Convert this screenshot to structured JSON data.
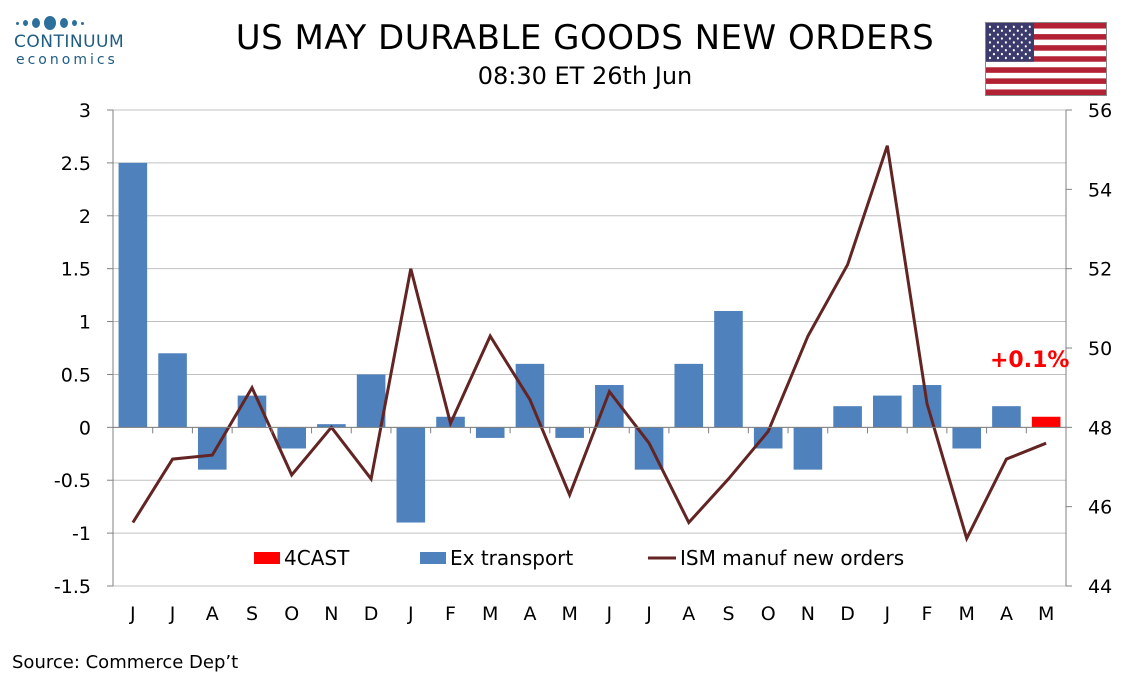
{
  "logo": {
    "word": "CONTINUUM",
    "sub": "economics"
  },
  "header": {
    "title": "US MAY DURABLE GOODS NEW ORDERS",
    "subtitle": "08:30 ET 26th Jun"
  },
  "source": "Source: Commerce Dep’t",
  "colors": {
    "ex_transport": "#4f81bd",
    "forecast": "#ff0000",
    "ism": "#632523",
    "grid": "#c0c0c0"
  },
  "chart_data": {
    "type": "bar",
    "categories": [
      "J",
      "J",
      "A",
      "S",
      "O",
      "N",
      "D",
      "J",
      "F",
      "M",
      "A",
      "M",
      "J",
      "J",
      "A",
      "S",
      "O",
      "N",
      "D",
      "J",
      "F",
      "M",
      "A",
      "M"
    ],
    "series": [
      {
        "name": "Ex transport",
        "kind": "bar",
        "axis": "left",
        "values": [
          2.5,
          0.7,
          -0.4,
          0.3,
          -0.2,
          0.03,
          0.5,
          -0.9,
          0.1,
          -0.1,
          0.6,
          -0.1,
          0.4,
          -0.4,
          0.6,
          1.1,
          -0.2,
          -0.4,
          0.2,
          0.3,
          0.4,
          -0.2,
          0.2,
          null
        ]
      },
      {
        "name": "4CAST",
        "kind": "bar",
        "axis": "left",
        "values": [
          null,
          null,
          null,
          null,
          null,
          null,
          null,
          null,
          null,
          null,
          null,
          null,
          null,
          null,
          null,
          null,
          null,
          null,
          null,
          null,
          null,
          null,
          null,
          0.1
        ]
      },
      {
        "name": "ISM manuf new orders",
        "kind": "line",
        "axis": "right",
        "values": [
          45.6,
          47.2,
          47.3,
          49.0,
          46.8,
          48.0,
          46.7,
          52.0,
          48.1,
          50.3,
          48.7,
          46.3,
          48.9,
          47.6,
          45.6,
          46.7,
          47.9,
          50.3,
          52.1,
          55.1,
          48.6,
          45.2,
          47.2,
          47.6
        ]
      }
    ],
    "left_axis": {
      "ylim": [
        -1.5,
        3
      ],
      "ticks": [
        "3",
        "2.5",
        "2",
        "1.5",
        "1",
        "0.5",
        "0",
        "-0.5",
        "-1",
        "-1.5"
      ]
    },
    "right_axis": {
      "ylim": [
        44,
        56
      ],
      "ticks": [
        "56",
        "54",
        "52",
        "50",
        "48",
        "46",
        "44"
      ]
    },
    "legend": [
      "4CAST",
      "Ex transport",
      "ISM manuf new orders"
    ],
    "annotation": "+0.1%",
    "grid": true
  }
}
